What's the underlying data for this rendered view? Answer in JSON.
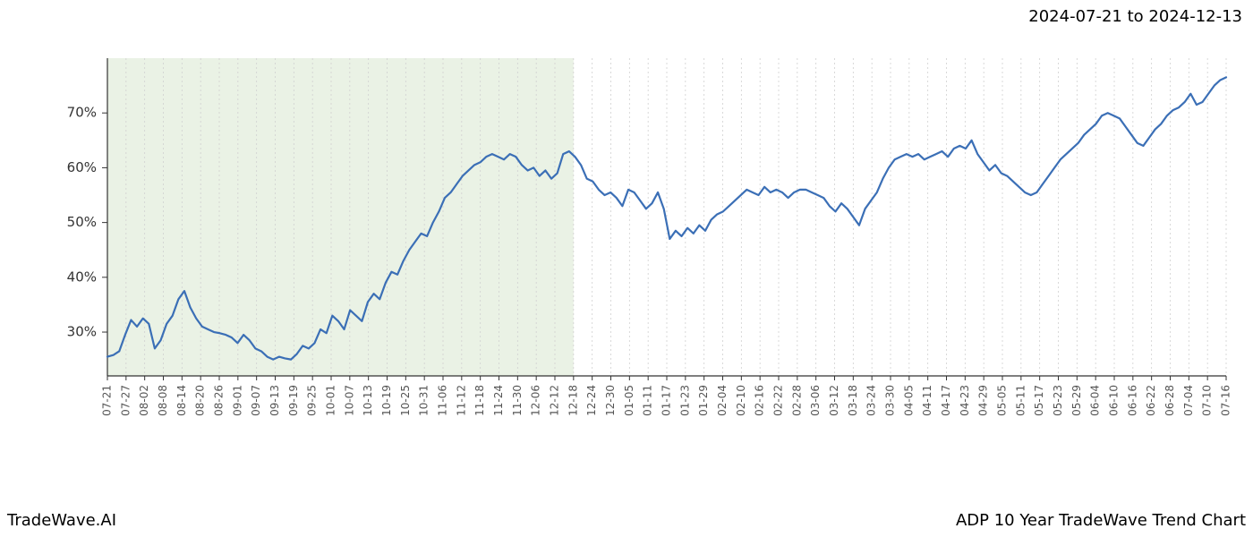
{
  "header": {
    "date_range": "2024-07-21 to 2024-12-13"
  },
  "footer": {
    "left": "TradeWave.AI",
    "right": "ADP 10 Year TradeWave Trend Chart"
  },
  "chart": {
    "type": "line",
    "background_color": "#ffffff",
    "line_color": "#3b6fb6",
    "line_width": 2.2,
    "highlight_fill": "#d8e8d0",
    "highlight_opacity": 0.55,
    "grid_color": "#d0d0d0",
    "grid_dash": "2,3",
    "axis_color": "#333333",
    "y_axis": {
      "min": 22,
      "max": 80,
      "ticks": [
        30,
        40,
        50,
        60,
        70
      ],
      "tick_labels": [
        "30%",
        "40%",
        "50%",
        "60%",
        "70%"
      ],
      "label_fontsize": 15
    },
    "x_axis": {
      "labels": [
        "07-21",
        "07-27",
        "08-02",
        "08-08",
        "08-14",
        "08-20",
        "08-26",
        "09-01",
        "09-07",
        "09-13",
        "09-19",
        "09-25",
        "10-01",
        "10-07",
        "10-13",
        "10-19",
        "10-25",
        "10-31",
        "11-06",
        "11-12",
        "11-18",
        "11-24",
        "11-30",
        "12-06",
        "12-12",
        "12-18",
        "12-24",
        "12-30",
        "01-05",
        "01-11",
        "01-17",
        "01-23",
        "01-29",
        "02-04",
        "02-10",
        "02-16",
        "02-22",
        "02-28",
        "03-06",
        "03-12",
        "03-18",
        "03-24",
        "03-30",
        "04-05",
        "04-11",
        "04-17",
        "04-23",
        "04-29",
        "05-05",
        "05-11",
        "05-17",
        "05-23",
        "05-29",
        "06-04",
        "06-10",
        "06-16",
        "06-22",
        "06-28",
        "07-04",
        "07-10",
        "07-16"
      ],
      "label_fontsize": 12,
      "label_rotation": -90
    },
    "highlight_range": {
      "start_index": 0,
      "end_index": 25
    },
    "series": {
      "values": [
        25.5,
        25.8,
        26.5,
        29.5,
        32.2,
        31.0,
        32.5,
        31.5,
        27.0,
        28.5,
        31.5,
        33.0,
        36.0,
        37.5,
        34.5,
        32.5,
        31.0,
        30.5,
        30.0,
        29.8,
        29.5,
        29.0,
        28.0,
        29.5,
        28.5,
        27.0,
        26.5,
        25.5,
        25.0,
        25.5,
        25.2,
        25.0,
        26.0,
        27.5,
        27.0,
        28.0,
        30.5,
        29.8,
        33.0,
        32.0,
        30.5,
        34.0,
        33.0,
        32.0,
        35.5,
        37.0,
        36.0,
        39.0,
        41.0,
        40.5,
        43.0,
        45.0,
        46.5,
        48.0,
        47.5,
        50.0,
        52.0,
        54.5,
        55.5,
        57.0,
        58.5,
        59.5,
        60.5,
        61.0,
        62.0,
        62.5,
        62.0,
        61.5,
        62.5,
        62.0,
        60.5,
        59.5,
        60.0,
        58.5,
        59.5,
        58.0,
        59.0,
        62.5,
        63.0,
        62.0,
        60.5,
        58.0,
        57.5,
        56.0,
        55.0,
        55.5,
        54.5,
        53.0,
        56.0,
        55.5,
        54.0,
        52.5,
        53.5,
        55.5,
        52.5,
        47.0,
        48.5,
        47.5,
        49.0,
        48.0,
        49.5,
        48.5,
        50.5,
        51.5,
        52.0,
        53.0,
        54.0,
        55.0,
        56.0,
        55.5,
        55.0,
        56.5,
        55.5,
        56.0,
        55.5,
        54.5,
        55.5,
        56.0,
        56.0,
        55.5,
        55.0,
        54.5,
        53.0,
        52.0,
        53.5,
        52.5,
        51.0,
        49.5,
        52.5,
        54.0,
        55.5,
        58.0,
        60.0,
        61.5,
        62.0,
        62.5,
        62.0,
        62.5,
        61.5,
        62.0,
        62.5,
        63.0,
        62.0,
        63.5,
        64.0,
        63.5,
        65.0,
        62.5,
        61.0,
        59.5,
        60.5,
        59.0,
        58.5,
        57.5,
        56.5,
        55.5,
        55.0,
        55.5,
        57.0,
        58.5,
        60.0,
        61.5,
        62.5,
        63.5,
        64.5,
        66.0,
        67.0,
        68.0,
        69.5,
        70.0,
        69.5,
        69.0,
        67.5,
        66.0,
        64.5,
        64.0,
        65.5,
        67.0,
        68.0,
        69.5,
        70.5,
        71.0,
        72.0,
        73.5,
        71.5,
        72.0,
        73.5,
        75.0,
        76.0,
        76.5
      ],
      "n_points": 190
    }
  }
}
